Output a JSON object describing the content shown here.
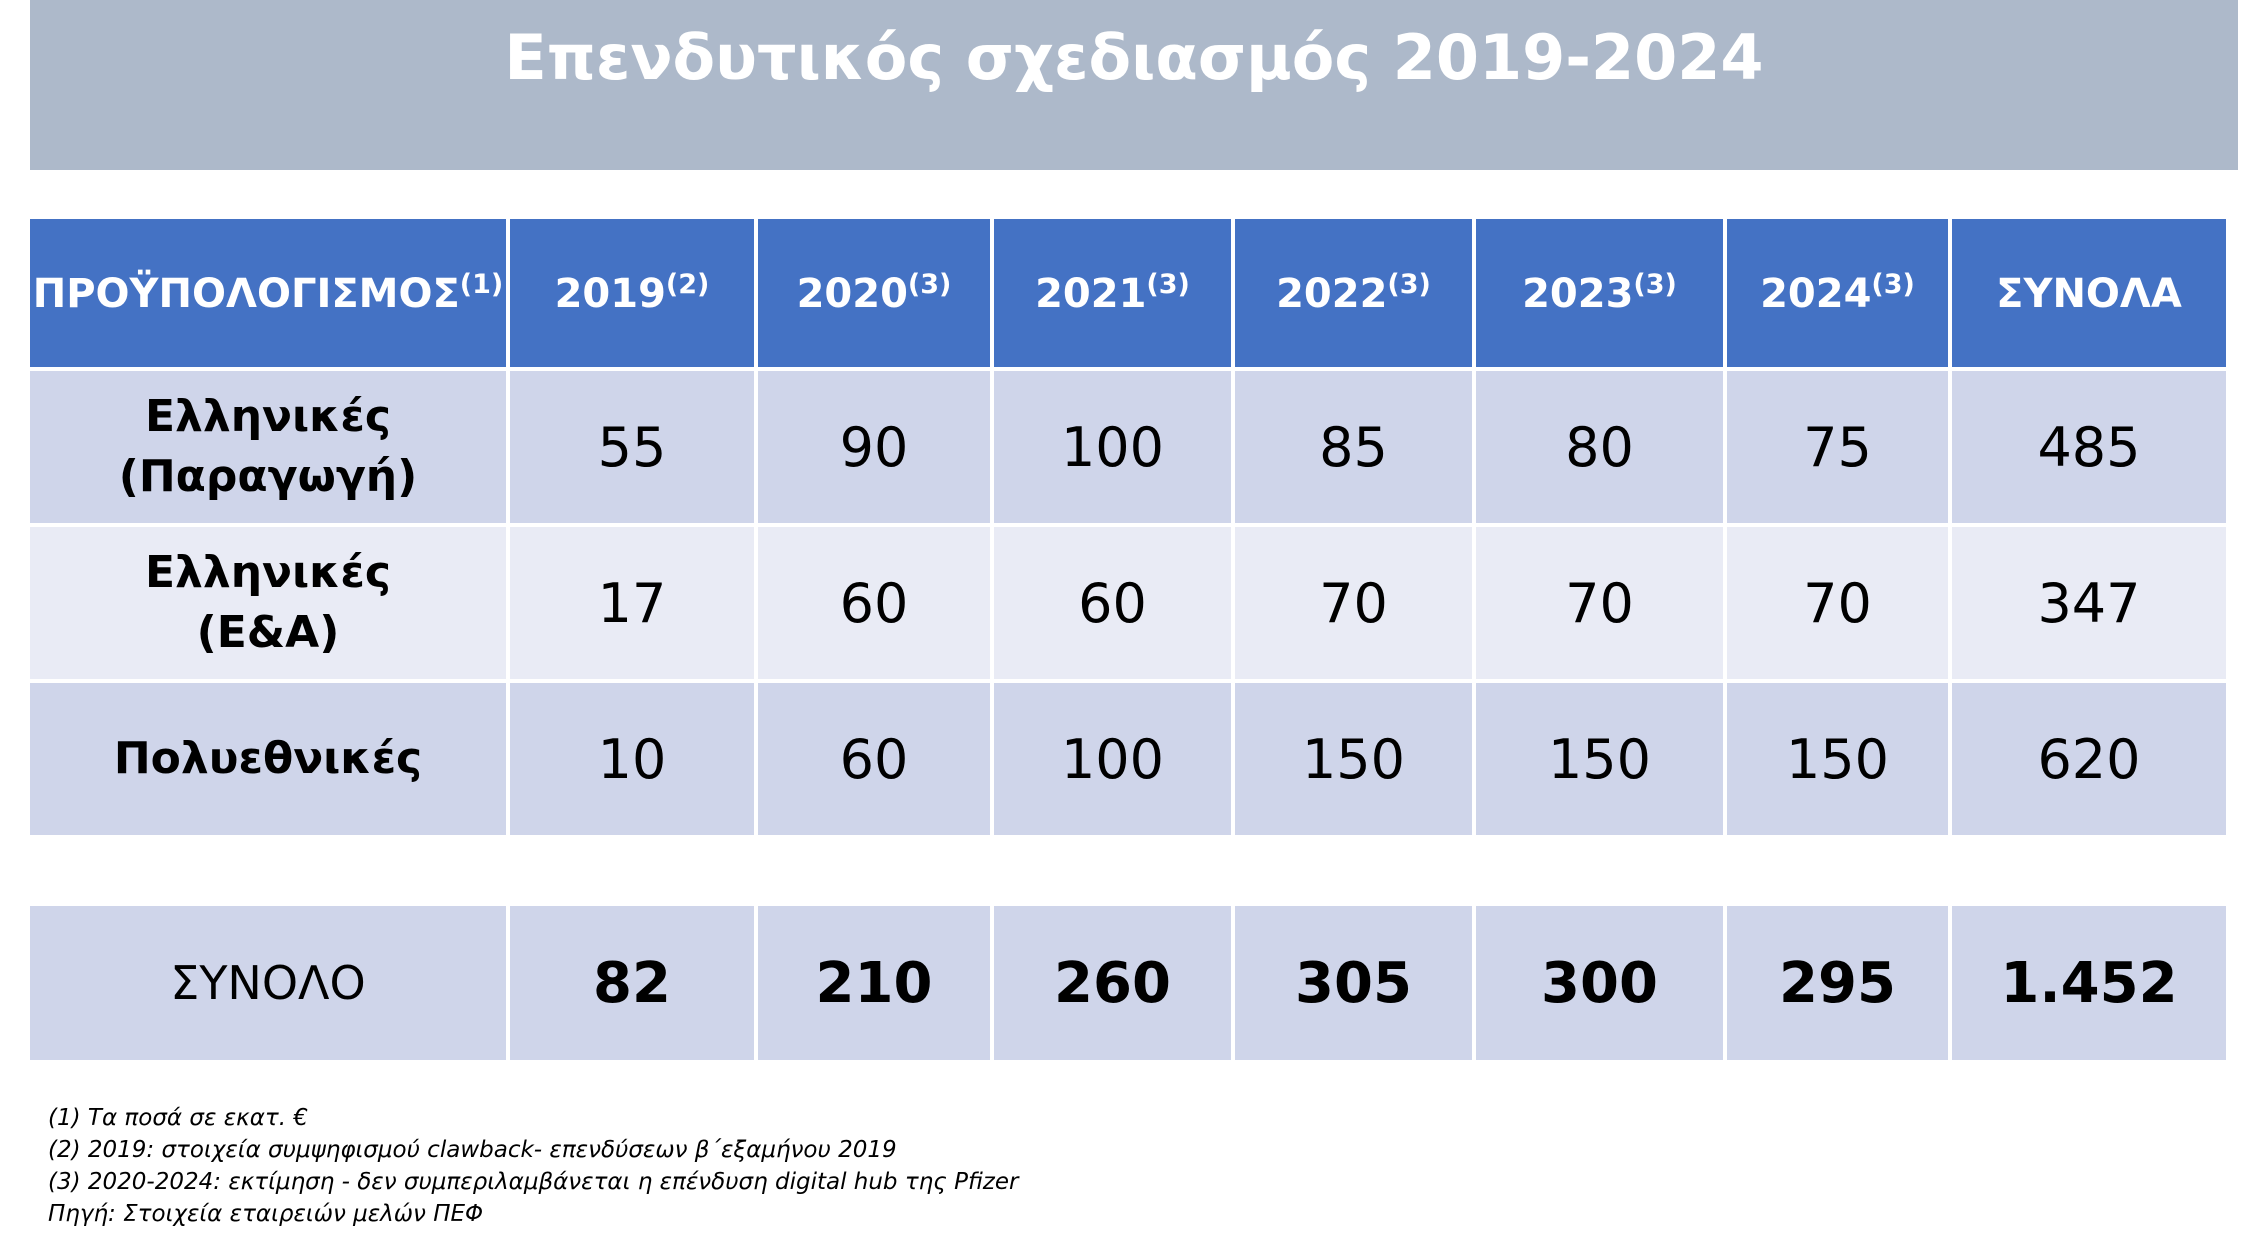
{
  "title": "Επενδυτικός σχεδιασμός 2019-2024",
  "table": {
    "headers": [
      {
        "label": "ΠΡΟΫΠΟΛΟΓΙΣΜΟΣ",
        "sup": "(1)"
      },
      {
        "label": "2019",
        "sup": "(2)"
      },
      {
        "label": "2020",
        "sup": "(3)"
      },
      {
        "label": "2021",
        "sup": "(3)"
      },
      {
        "label": "2022",
        "sup": "(3)"
      },
      {
        "label": "2023",
        "sup": "(3)"
      },
      {
        "label": "2024",
        "sup": "(3)"
      },
      {
        "label": "ΣΥΝΟΛΑ",
        "sup": ""
      }
    ],
    "rows": [
      {
        "label_line1": "Ελληνικές",
        "label_line2": "(Παραγωγή)",
        "values": [
          "55",
          "90",
          "100",
          "85",
          "80",
          "75",
          "485"
        ]
      },
      {
        "label_line1": "Ελληνικές",
        "label_line2": "(Ε&Α)",
        "values": [
          "17",
          "60",
          "60",
          "70",
          "70",
          "70",
          "347"
        ]
      },
      {
        "label_line1": "Πολυεθνικές",
        "label_line2": "",
        "values": [
          "10",
          "60",
          "100",
          "150",
          "150",
          "150",
          "620"
        ]
      }
    ],
    "total": {
      "label": "ΣΥΝΟΛΟ",
      "values": [
        "82",
        "210",
        "260",
        "305",
        "300",
        "295",
        "1.452"
      ]
    }
  },
  "notes": [
    "(1) Τα ποσά σε εκατ. €",
    "(2) 2019: στοιχεία συμψηφισμού clawback- επενδύσεων β΄εξαμήνου 2019",
    "(3) 2020-2024: εκτίμηση - δεν συμπεριλαμβάνεται η επένδυση digital hub της Pfizer",
    "Πηγή: Στοιχεία εταιρειών μελών ΠΕΦ"
  ],
  "colors": {
    "title_band": "#adb9ca",
    "header": "#4472c4",
    "band_dark": "#cfd5ea",
    "band_light": "#e9ebf5"
  }
}
